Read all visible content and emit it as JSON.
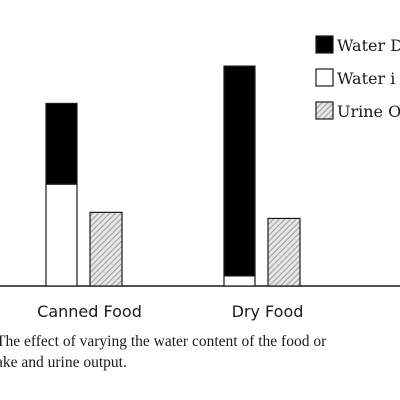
{
  "chart_data": {
    "type": "bar",
    "stacked_series": [
      "Water D",
      "Water i"
    ],
    "categories": [
      "Canned Food",
      "Dry Food"
    ],
    "series": [
      {
        "name": "Water D",
        "values": [
          80,
          208
        ],
        "color": "#000000",
        "pattern": "solid"
      },
      {
        "name": "Water i",
        "values": [
          101,
          10
        ],
        "color": "#ffffff",
        "pattern": "outline"
      },
      {
        "name": "Urine O",
        "values": [
          73,
          67
        ],
        "color": "#cccccc",
        "pattern": "hatched"
      }
    ],
    "legend": {
      "placement": "top-right",
      "labels": [
        "Water D",
        "Water i",
        "Urine O"
      ]
    },
    "ylim": [
      0,
      230
    ],
    "grid": false
  },
  "caption": {
    "line1": "The effect of varying the water content of the food or",
    "line2": "ake and urine output."
  }
}
